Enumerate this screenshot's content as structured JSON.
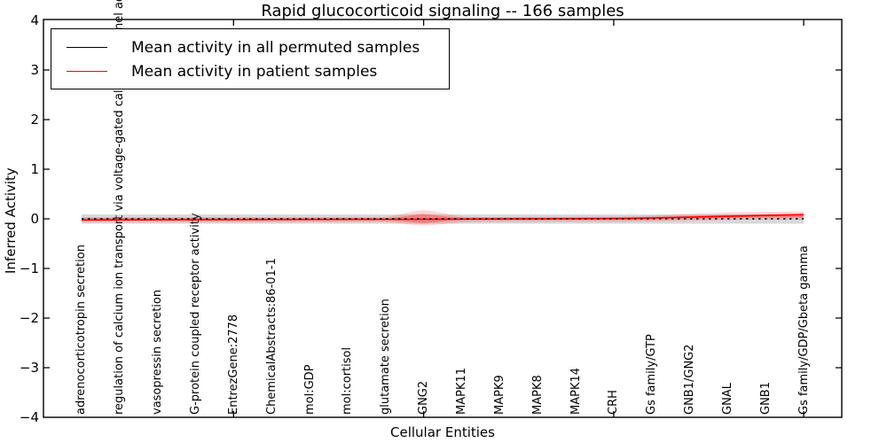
{
  "title": "Rapid glucocorticoid signaling -- 166 samples",
  "axes": {
    "xlabel": "Cellular Entities",
    "ylabel": "Inferred Activity",
    "y_tick_labels": [
      "4",
      "3",
      "2",
      "1",
      "0",
      "−1",
      "−2",
      "−3",
      "−4"
    ],
    "x_tick_labels": [
      "adrenocorticotropin secretion",
      "regulation of calcium ion transport via voltage-gated calcium channel activity",
      "vasopressin secretion",
      "G-protein coupled receptor activity",
      "EntrezGene:2778",
      "ChemicalAbstracts:86-01-1",
      "mol:GDP",
      "mol:cortisol",
      "glutamate secretion",
      "GNG2",
      "MAPK11",
      "MAPK9",
      "MAPK8",
      "MAPK14",
      "CRH",
      "Gs family/GTP",
      "GNB1/GNG2",
      "GNAL",
      "GNB1",
      "Gs family/GDP/Gbeta gamma"
    ]
  },
  "legend": {
    "items": [
      {
        "label": "Mean activity in all permuted samples",
        "color": "#000000"
      },
      {
        "label": "Mean activity in patient samples",
        "color": "#ff0000"
      }
    ]
  },
  "chart_data": {
    "type": "line",
    "title": "Rapid glucocorticoid signaling -- 166 samples",
    "xlabel": "Cellular Entities",
    "ylabel": "Inferred Activity",
    "ylim": [
      -4,
      4
    ],
    "grid": false,
    "legend_position": "upper left",
    "categories": [
      "adrenocorticotropin secretion",
      "regulation of calcium ion transport via voltage-gated calcium channel activity",
      "vasopressin secretion",
      "G-protein coupled receptor activity",
      "EntrezGene:2778",
      "ChemicalAbstracts:86-01-1",
      "mol:GDP",
      "mol:cortisol",
      "glutamate secretion",
      "GNG2",
      "MAPK11",
      "MAPK9",
      "MAPK8",
      "MAPK14",
      "CRH",
      "Gs family/GTP",
      "GNB1/GNG2",
      "GNAL",
      "GNB1",
      "Gs family/GDP/Gbeta gamma"
    ],
    "series": [
      {
        "name": "Mean activity in all permuted samples",
        "color": "#000000",
        "line_style": "dashed",
        "values": [
          0,
          0,
          0,
          0,
          0,
          0,
          0,
          0,
          0,
          0,
          0,
          0,
          0,
          0,
          0,
          0,
          0,
          0,
          0,
          0
        ]
      },
      {
        "name": "Mean activity in patient samples",
        "color": "#ff0000",
        "line_style": "solid",
        "values": [
          -0.02,
          -0.02,
          -0.02,
          -0.02,
          -0.02,
          -0.02,
          -0.02,
          -0.02,
          -0.02,
          -0.01,
          0,
          0,
          0,
          0.01,
          0.01,
          0.02,
          0.03,
          0.05,
          0.07,
          0.09
        ]
      }
    ],
    "shaded_regions": [
      {
        "name": "permuted samples spread",
        "color": "gray",
        "approx_half_width": 0.1,
        "extent": "all categories"
      },
      {
        "name": "patient samples spread",
        "color": "red",
        "approx_half_width": 0.05,
        "notable_peaks": [
          "GNG2",
          "Gs family/GDP/Gbeta gamma"
        ],
        "peak_half_width": 0.18
      }
    ]
  }
}
